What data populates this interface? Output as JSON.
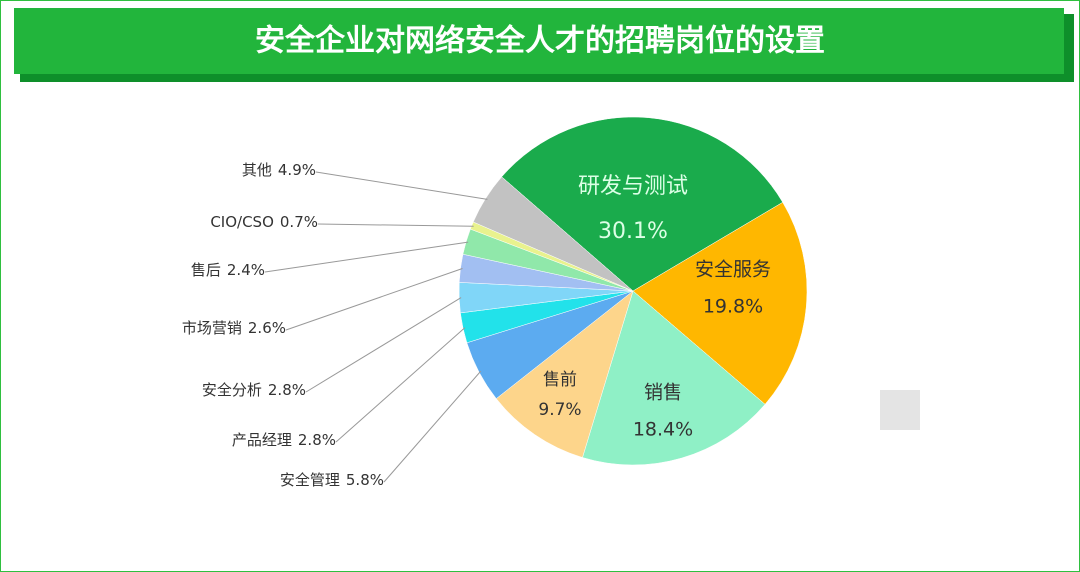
{
  "chart_data": {
    "type": "pie",
    "title": "安全企业对网络安全人才的招聘岗位的设置",
    "categories": [
      "研发与测试",
      "安全服务",
      "销售",
      "售前",
      "安全管理",
      "产品经理",
      "安全分析",
      "市场营销",
      "售后",
      "CIO/CSO",
      "其他"
    ],
    "values": [
      30.1,
      19.8,
      18.4,
      9.7,
      5.8,
      2.8,
      2.8,
      2.6,
      2.4,
      0.7,
      4.9
    ],
    "value_labels": [
      "30.1%",
      "19.8%",
      "18.4%",
      "9.7%",
      "5.8%",
      "2.8%",
      "2.8%",
      "2.6%",
      "2.4%",
      "0.7%",
      "4.9%"
    ],
    "colors": [
      "#1aab4c",
      "#ffb700",
      "#8ff0c6",
      "#fdd58b",
      "#5cabf0",
      "#22e2ea",
      "#80d6f8",
      "#a2bff2",
      "#90e8aa",
      "#e9f28e",
      "#c2c2c2"
    ]
  }
}
